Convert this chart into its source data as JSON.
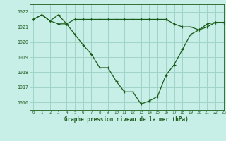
{
  "title": "Graphe pression niveau de la mer (hPa)",
  "background_color": "#c8eee8",
  "grid_color": "#a0d4c8",
  "line_color": "#1a5c1a",
  "marker_color": "#1a5c1a",
  "xlim": [
    -0.5,
    23
  ],
  "ylim": [
    1015.5,
    1022.5
  ],
  "yticks": [
    1016,
    1017,
    1018,
    1019,
    1020,
    1021,
    1022
  ],
  "xticks": [
    0,
    1,
    2,
    3,
    4,
    5,
    6,
    7,
    8,
    9,
    10,
    11,
    12,
    13,
    14,
    15,
    16,
    17,
    18,
    19,
    20,
    21,
    22,
    23
  ],
  "line1_x": [
    0,
    1,
    2,
    3,
    4,
    5,
    6,
    7,
    8,
    9,
    10,
    11,
    12,
    13,
    14,
    15,
    16,
    17,
    18,
    19,
    20,
    21,
    22,
    23
  ],
  "line1_y": [
    1021.5,
    1021.8,
    1021.4,
    1021.8,
    1021.2,
    1021.5,
    1021.5,
    1021.5,
    1021.5,
    1021.5,
    1021.5,
    1021.5,
    1021.5,
    1021.5,
    1021.5,
    1021.5,
    1021.5,
    1021.2,
    1021.0,
    1021.0,
    1020.8,
    1021.2,
    1021.3,
    1021.3
  ],
  "line2_x": [
    0,
    1,
    2,
    3,
    4,
    5,
    6,
    7,
    8,
    9,
    10,
    11,
    12,
    13,
    14,
    15,
    16,
    17,
    18,
    19,
    20,
    21,
    22,
    23
  ],
  "line2_y": [
    1021.5,
    1021.8,
    1021.4,
    1021.2,
    1021.2,
    1020.5,
    1019.8,
    1019.2,
    1018.3,
    1018.3,
    1017.4,
    1016.7,
    1016.7,
    1015.9,
    1016.1,
    1016.4,
    1017.8,
    1018.5,
    1019.5,
    1020.5,
    1020.8,
    1021.0,
    1021.3,
    1021.3
  ]
}
